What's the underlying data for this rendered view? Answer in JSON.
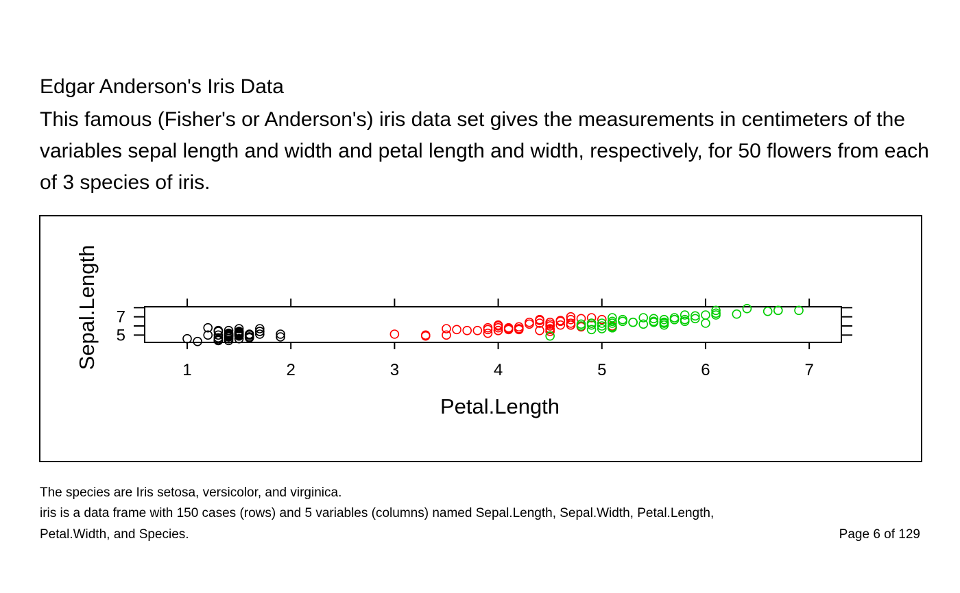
{
  "doc": {
    "title": "Edgar Anderson's Iris Data",
    "description": "This famous (Fisher's or Anderson's) iris data set gives the measurements in centimeters of the variables sepal length and width and petal length and width, respectively, for 50 flowers from each of 3 species of iris.",
    "footer_line1": "The species are Iris setosa, versicolor, and virginica.",
    "footer_line2": "iris is a data frame with 150 cases (rows) and 5 variables (columns) named Sepal.Length, Sepal.Width, Petal.Length,",
    "footer_line3": "Petal.Width, and Species.",
    "page_label": "Page 6 of 129"
  },
  "chart_data": {
    "type": "scatter",
    "xlabel": "Petal.Length",
    "ylabel": "Sepal.Length",
    "xlim": [
      0.59,
      7.31
    ],
    "ylim": [
      4.2,
      8.1
    ],
    "xticks": [
      1,
      2,
      3,
      4,
      5,
      6,
      7
    ],
    "yticks": [
      5,
      7
    ],
    "grid": false,
    "marker": "open-circle",
    "series": [
      {
        "color": "#000000",
        "points": [
          [
            1.4,
            5.1
          ],
          [
            1.4,
            4.9
          ],
          [
            1.3,
            4.7
          ],
          [
            1.5,
            4.6
          ],
          [
            1.4,
            5.0
          ],
          [
            1.7,
            5.4
          ],
          [
            1.4,
            4.6
          ],
          [
            1.5,
            5.0
          ],
          [
            1.4,
            4.4
          ],
          [
            1.5,
            4.9
          ],
          [
            1.5,
            5.4
          ],
          [
            1.6,
            4.8
          ],
          [
            1.4,
            4.8
          ],
          [
            1.1,
            4.3
          ],
          [
            1.2,
            5.8
          ],
          [
            1.5,
            5.7
          ],
          [
            1.3,
            5.4
          ],
          [
            1.4,
            5.1
          ],
          [
            1.7,
            5.7
          ],
          [
            1.5,
            5.1
          ],
          [
            1.7,
            5.4
          ],
          [
            1.5,
            5.1
          ],
          [
            1.0,
            4.6
          ],
          [
            1.7,
            5.1
          ],
          [
            1.9,
            4.8
          ],
          [
            1.6,
            5.0
          ],
          [
            1.6,
            5.0
          ],
          [
            1.5,
            5.2
          ],
          [
            1.4,
            5.2
          ],
          [
            1.6,
            4.7
          ],
          [
            1.6,
            4.8
          ],
          [
            1.5,
            5.4
          ],
          [
            1.5,
            5.2
          ],
          [
            1.4,
            5.5
          ],
          [
            1.5,
            4.9
          ],
          [
            1.2,
            5.0
          ],
          [
            1.3,
            5.5
          ],
          [
            1.4,
            4.9
          ],
          [
            1.3,
            4.4
          ],
          [
            1.5,
            5.1
          ],
          [
            1.3,
            5.0
          ],
          [
            1.3,
            4.5
          ],
          [
            1.3,
            4.4
          ],
          [
            1.6,
            5.0
          ],
          [
            1.9,
            5.1
          ],
          [
            1.4,
            4.8
          ],
          [
            1.6,
            5.1
          ],
          [
            1.4,
            4.6
          ],
          [
            1.5,
            5.3
          ],
          [
            1.4,
            5.0
          ]
        ]
      },
      {
        "color": "#ff0000",
        "points": [
          [
            4.7,
            7.0
          ],
          [
            4.5,
            6.4
          ],
          [
            4.9,
            6.9
          ],
          [
            4.0,
            5.5
          ],
          [
            4.6,
            6.5
          ],
          [
            4.5,
            5.7
          ],
          [
            4.7,
            6.3
          ],
          [
            3.3,
            4.9
          ],
          [
            4.6,
            6.6
          ],
          [
            3.9,
            5.2
          ],
          [
            3.5,
            5.0
          ],
          [
            4.2,
            5.9
          ],
          [
            4.0,
            6.0
          ],
          [
            4.7,
            6.1
          ],
          [
            3.6,
            5.6
          ],
          [
            4.4,
            6.7
          ],
          [
            4.5,
            5.6
          ],
          [
            4.1,
            5.8
          ],
          [
            4.5,
            6.2
          ],
          [
            3.9,
            5.6
          ],
          [
            4.8,
            5.9
          ],
          [
            4.0,
            6.1
          ],
          [
            4.9,
            6.3
          ],
          [
            4.7,
            6.1
          ],
          [
            4.3,
            6.4
          ],
          [
            4.4,
            6.6
          ],
          [
            4.8,
            6.8
          ],
          [
            5.0,
            6.7
          ],
          [
            4.5,
            6.0
          ],
          [
            3.5,
            5.7
          ],
          [
            3.8,
            5.5
          ],
          [
            3.7,
            5.5
          ],
          [
            3.9,
            5.8
          ],
          [
            5.1,
            6.0
          ],
          [
            4.5,
            5.4
          ],
          [
            4.5,
            6.0
          ],
          [
            4.7,
            6.7
          ],
          [
            4.4,
            6.3
          ],
          [
            4.1,
            5.6
          ],
          [
            4.0,
            5.5
          ],
          [
            4.4,
            5.5
          ],
          [
            4.6,
            6.1
          ],
          [
            4.0,
            5.8
          ],
          [
            3.3,
            5.0
          ],
          [
            4.2,
            5.6
          ],
          [
            4.2,
            5.7
          ],
          [
            4.2,
            5.7
          ],
          [
            4.3,
            6.2
          ],
          [
            3.0,
            5.1
          ],
          [
            4.1,
            5.7
          ]
        ]
      },
      {
        "color": "#00cd00",
        "points": [
          [
            6.0,
            6.3
          ],
          [
            5.1,
            5.8
          ],
          [
            5.9,
            7.1
          ],
          [
            5.6,
            6.3
          ],
          [
            5.8,
            6.5
          ],
          [
            6.6,
            7.6
          ],
          [
            4.5,
            4.9
          ],
          [
            6.3,
            7.3
          ],
          [
            5.8,
            6.7
          ],
          [
            6.1,
            7.2
          ],
          [
            5.1,
            6.5
          ],
          [
            5.3,
            6.4
          ],
          [
            5.5,
            6.8
          ],
          [
            5.0,
            5.7
          ],
          [
            5.1,
            5.8
          ],
          [
            5.3,
            6.4
          ],
          [
            5.5,
            6.5
          ],
          [
            6.7,
            7.7
          ],
          [
            6.9,
            7.7
          ],
          [
            5.0,
            6.0
          ],
          [
            5.7,
            6.9
          ],
          [
            4.9,
            5.6
          ],
          [
            6.7,
            7.7
          ],
          [
            4.9,
            6.3
          ],
          [
            5.7,
            6.7
          ],
          [
            6.0,
            7.2
          ],
          [
            4.8,
            6.2
          ],
          [
            4.9,
            6.1
          ],
          [
            5.6,
            6.4
          ],
          [
            5.8,
            7.2
          ],
          [
            6.1,
            7.4
          ],
          [
            6.4,
            7.9
          ],
          [
            5.6,
            6.4
          ],
          [
            5.1,
            6.3
          ],
          [
            5.6,
            6.1
          ],
          [
            6.1,
            7.7
          ],
          [
            5.6,
            6.3
          ],
          [
            5.5,
            6.4
          ],
          [
            4.8,
            6.0
          ],
          [
            5.4,
            6.9
          ],
          [
            5.6,
            6.7
          ],
          [
            5.1,
            6.9
          ],
          [
            5.1,
            5.8
          ],
          [
            5.9,
            6.8
          ],
          [
            5.7,
            6.7
          ],
          [
            5.2,
            6.7
          ],
          [
            5.0,
            6.3
          ],
          [
            5.2,
            6.5
          ],
          [
            5.4,
            6.2
          ],
          [
            5.1,
            5.9
          ]
        ]
      }
    ]
  }
}
